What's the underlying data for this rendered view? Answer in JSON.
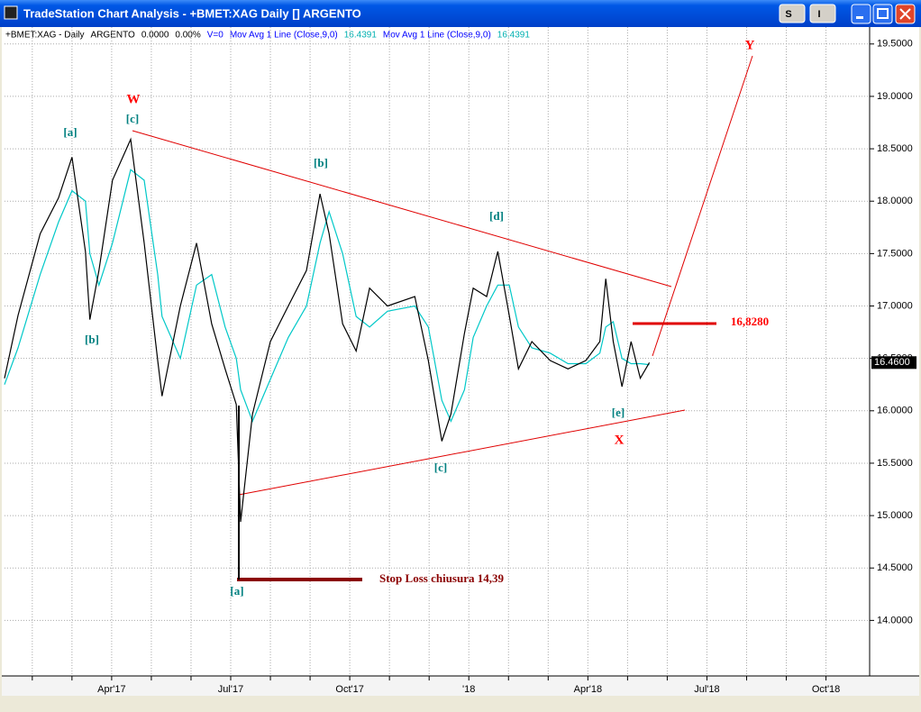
{
  "window": {
    "title": "TradeStation Chart Analysis - +BMET:XAG Daily [] ARGENTO",
    "buttons": [
      "S",
      "I"
    ]
  },
  "status_line": [
    {
      "text": "ARGENTO",
      "color": "#000000"
    },
    {
      "text": "0.0000",
      "color": "#000000"
    },
    {
      "text": "0.00%",
      "color": "#000000"
    },
    {
      "text": "V=0",
      "color": "#0000ff"
    },
    {
      "text": "Mov Avg 1 Line (Close,9,0)",
      "color": "#0000ff"
    },
    {
      "text": "16.4391",
      "color": "#00b0b0"
    },
    {
      "text": "Mov Avg 1 Line (Close,9,0)",
      "color": "#0000ff"
    },
    {
      "text": "16.4391",
      "color": "#00b0b0"
    }
  ],
  "chart_data": {
    "type": "line",
    "x": [
      0.3,
      0.64,
      1.2,
      1.66,
      2.0,
      2.34,
      2.45,
      2.68,
      3.02,
      3.48,
      3.82,
      4.16,
      4.27,
      4.73,
      5.14,
      5.52,
      5.86,
      6.14,
      6.25,
      6.55,
      7.0,
      7.45,
      7.91,
      8.25,
      8.48,
      8.82,
      9.16,
      9.5,
      9.95,
      10.64,
      10.98,
      11.32,
      11.55,
      11.89,
      12.11,
      12.45,
      12.73,
      13.02,
      13.25,
      13.59,
      14.05,
      14.5,
      14.95,
      15.3,
      15.45,
      15.64,
      15.86,
      16.09,
      16.32,
      16.55
    ],
    "series": [
      {
        "name": "+BMET:XAG - Daily",
        "color": "#000000",
        "values": [
          16.31,
          16.91,
          17.69,
          18.03,
          18.42,
          17.52,
          16.87,
          17.34,
          18.2,
          18.59,
          17.6,
          16.48,
          16.14,
          17.0,
          17.6,
          16.83,
          16.4,
          16.06,
          14.94,
          15.97,
          16.66,
          17.0,
          17.34,
          18.07,
          17.69,
          16.83,
          16.57,
          17.17,
          17.0,
          17.09,
          16.48,
          15.71,
          15.97,
          16.74,
          17.17,
          17.09,
          17.52,
          16.91,
          16.4,
          16.66,
          16.48,
          16.4,
          16.48,
          16.66,
          17.26,
          16.66,
          16.23,
          16.66,
          16.31,
          16.46
        ]
      },
      {
        "name": "Mov Avg 1 Line (Close,9,0)",
        "color": "#00c8c8",
        "values": [
          16.25,
          16.6,
          17.3,
          17.8,
          18.1,
          18.0,
          17.5,
          17.2,
          17.6,
          18.3,
          18.2,
          17.3,
          16.9,
          16.5,
          17.2,
          17.3,
          16.8,
          16.5,
          16.2,
          15.9,
          16.3,
          16.7,
          17.0,
          17.6,
          17.9,
          17.5,
          16.9,
          16.8,
          16.95,
          17.0,
          16.8,
          16.1,
          15.9,
          16.2,
          16.7,
          17.0,
          17.2,
          17.2,
          16.8,
          16.6,
          16.55,
          16.45,
          16.45,
          16.55,
          16.8,
          16.85,
          16.5,
          16.45,
          16.45,
          16.44
        ]
      }
    ],
    "xlim": [
      0.3,
      22.1
    ],
    "xticks": [
      {
        "value": 1,
        "label": null
      },
      {
        "value": 2,
        "label": null
      },
      {
        "value": 3,
        "label": "Apr'17"
      },
      {
        "value": 4,
        "label": null
      },
      {
        "value": 5,
        "label": null
      },
      {
        "value": 6,
        "label": "Jul'17"
      },
      {
        "value": 7,
        "label": null
      },
      {
        "value": 8,
        "label": null
      },
      {
        "value": 9,
        "label": "Oct'17"
      },
      {
        "value": 10,
        "label": null
      },
      {
        "value": 11,
        "label": null
      },
      {
        "value": 12,
        "label": "'18"
      },
      {
        "value": 13,
        "label": null
      },
      {
        "value": 14,
        "label": null
      },
      {
        "value": 15,
        "label": "Apr'18"
      },
      {
        "value": 16,
        "label": null
      },
      {
        "value": 17,
        "label": null
      },
      {
        "value": 18,
        "label": "Jul'18"
      },
      {
        "value": 19,
        "label": null
      },
      {
        "value": 20,
        "label": null
      },
      {
        "value": 21,
        "label": "Oct'18"
      }
    ],
    "ylim": [
      13.47,
      19.61
    ],
    "yticks": [
      {
        "value": 14,
        "label": "14.0000"
      },
      {
        "value": 14.5,
        "label": "14.5000"
      },
      {
        "value": 15,
        "label": "15.0000"
      },
      {
        "value": 15.5,
        "label": "15.5000"
      },
      {
        "value": 16,
        "label": "16.0000"
      },
      {
        "value": 16.5,
        "label": "16.5000"
      },
      {
        "value": 17,
        "label": "17.0000"
      },
      {
        "value": 17.5,
        "label": "17.5000"
      },
      {
        "value": 18,
        "label": "18.0000"
      },
      {
        "value": 18.5,
        "label": "18.5000"
      },
      {
        "value": 19,
        "label": "19.0000"
      },
      {
        "value": 19.5,
        "label": "19.5000"
      }
    ],
    "grid": true,
    "last_price": {
      "value": 16.46,
      "label": "16.4600"
    },
    "annotations": [
      {
        "text": "W",
        "color": "#ff0000"
      },
      {
        "text": "[c]",
        "color": "#008080"
      },
      {
        "text": "[a]",
        "color": "#008080"
      },
      {
        "text": "[b]",
        "color": "#008080"
      },
      {
        "text": "[b]",
        "color": "#008080"
      },
      {
        "text": "[d]",
        "color": "#008080"
      },
      {
        "text": "[c]",
        "color": "#008080"
      },
      {
        "text": "[e]",
        "color": "#008080"
      },
      {
        "text": "X",
        "color": "#ff0000"
      },
      {
        "text": "Y",
        "color": "#ff0000"
      },
      {
        "text": "[a]",
        "color": "#008080"
      },
      {
        "text": "16,8280",
        "color": "#ff0000"
      },
      {
        "text": "Stop Loss chiusura 14,39",
        "color": "#8b0000"
      }
    ]
  }
}
